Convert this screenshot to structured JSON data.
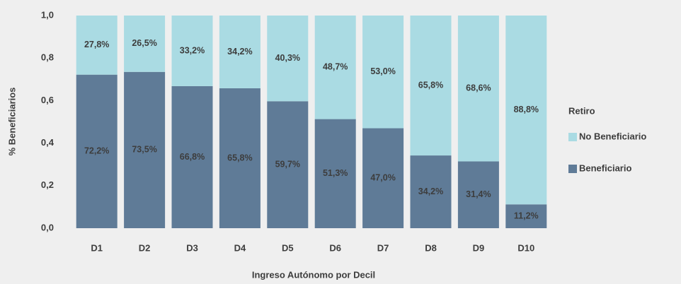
{
  "chart_data": {
    "type": "stacked_bar",
    "x_label": "Ingreso Autónomo por Decil",
    "y_label": "% Beneficiarios",
    "legend_title": "Retiro",
    "legend_position": "right",
    "categories": [
      "D1",
      "D2",
      "D3",
      "D4",
      "D5",
      "D6",
      "D7",
      "D8",
      "D9",
      "D10"
    ],
    "series": [
      {
        "name": "Beneficiario",
        "color": "#5f7b97",
        "values": [
          0.722,
          0.735,
          0.668,
          0.658,
          0.597,
          0.513,
          0.47,
          0.342,
          0.314,
          0.112
        ],
        "value_labels": [
          "72,2%",
          "73,5%",
          "66,8%",
          "65,8%",
          "59,7%",
          "51,3%",
          "47,0%",
          "34,2%",
          "31,4%",
          "11,2%"
        ]
      },
      {
        "name": "No Beneficiario",
        "color": "#aadbe3",
        "values": [
          0.278,
          0.265,
          0.332,
          0.342,
          0.403,
          0.487,
          0.53,
          0.658,
          0.686,
          0.888
        ],
        "value_labels": [
          "27,8%",
          "26,5%",
          "33,2%",
          "34,2%",
          "40,3%",
          "48,7%",
          "53,0%",
          "65,8%",
          "68,6%",
          "88,8%"
        ]
      }
    ],
    "ylim": [
      0,
      1
    ],
    "yticks": [
      {
        "value": 0,
        "label": "0,0"
      },
      {
        "value": 0.2,
        "label": "0,2"
      },
      {
        "value": 0.4,
        "label": "0,4"
      },
      {
        "value": 0.6,
        "label": "0,6"
      },
      {
        "value": 0.8,
        "label": "0,8"
      },
      {
        "value": 1,
        "label": "1,0"
      }
    ]
  }
}
